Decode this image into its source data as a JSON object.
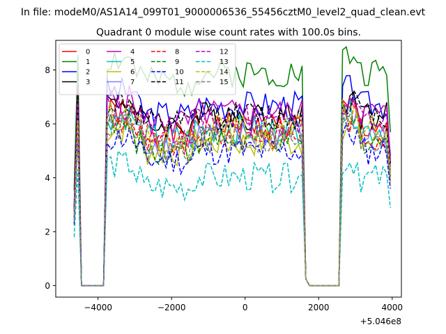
{
  "chart_data": {
    "type": "line",
    "suptitle": "In file: modeM0/AS1A14_099T01_9000006536_55456cztM0_level2_quad_clean.evt",
    "title": "Quadrant 0 module wise count rates with 100.0s bins.",
    "xlabel": "",
    "ylabel": "",
    "x_offset_label": "+5.046e8",
    "xlim": [
      -5150,
      4250
    ],
    "ylim": [
      -0.43,
      9.1
    ],
    "x_ticks": [
      -4000,
      -2000,
      0,
      2000,
      4000
    ],
    "x_tick_labels": [
      "−4000",
      "−2000",
      "0",
      "2000",
      "4000"
    ],
    "y_ticks": [
      0,
      2,
      4,
      6,
      8
    ],
    "y_tick_labels": [
      "0",
      "2",
      "4",
      "6",
      "8"
    ],
    "legend_position": "upper-left",
    "gaps": [
      [
        -4500,
        -3850
      ],
      [
        1650,
        2550
      ]
    ],
    "series": [
      {
        "name": "0",
        "color": "#ff0000",
        "dash": "solid",
        "level": 5.9,
        "seed": 1
      },
      {
        "name": "1",
        "color": "#008000",
        "dash": "solid",
        "level": 7.9,
        "seed": 2
      },
      {
        "name": "2",
        "color": "#0000ff",
        "dash": "solid",
        "level": 6.7,
        "seed": 3
      },
      {
        "name": "3",
        "color": "#000000",
        "dash": "solid",
        "level": 6.3,
        "seed": 4
      },
      {
        "name": "4",
        "color": "#bf00bf",
        "dash": "solid",
        "level": 6.4,
        "seed": 5
      },
      {
        "name": "5",
        "color": "#00bfbf",
        "dash": "solid",
        "level": 5.8,
        "seed": 6
      },
      {
        "name": "6",
        "color": "#bfbf00",
        "dash": "solid",
        "level": 5.3,
        "seed": 7
      },
      {
        "name": "7",
        "color": "#8080ff",
        "dash": "solid",
        "level": 5.6,
        "seed": 8
      },
      {
        "name": "8",
        "color": "#ff0000",
        "dash": "dashed",
        "level": 5.6,
        "seed": 9
      },
      {
        "name": "9",
        "color": "#008000",
        "dash": "dashed",
        "level": 5.4,
        "seed": 10
      },
      {
        "name": "10",
        "color": "#0000ff",
        "dash": "dashed",
        "level": 5.0,
        "seed": 11
      },
      {
        "name": "11",
        "color": "#000000",
        "dash": "dashed",
        "level": 6.3,
        "seed": 12
      },
      {
        "name": "12",
        "color": "#bf00bf",
        "dash": "dashed",
        "level": 6.1,
        "seed": 13
      },
      {
        "name": "13",
        "color": "#00bfbf",
        "dash": "dashed",
        "level": 4.0,
        "seed": 14
      },
      {
        "name": "14",
        "color": "#bfbf00",
        "dash": "dashed",
        "level": 5.8,
        "seed": 15
      },
      {
        "name": "15",
        "color": "#808080",
        "dash": "dashed",
        "level": 5.4,
        "seed": 16
      }
    ]
  }
}
